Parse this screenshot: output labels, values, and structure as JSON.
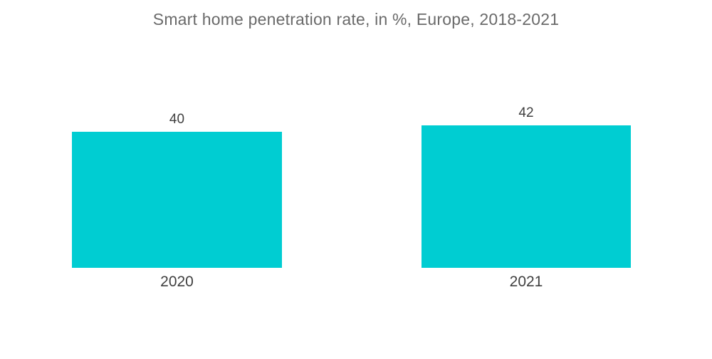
{
  "page": {
    "background_color": "#ffffff"
  },
  "chart_data": {
    "type": "bar",
    "title": "Smart home penetration rate, in %, Europe, 2018-2021",
    "xlabel": "",
    "ylabel": "",
    "categories": [
      "2020",
      "2021"
    ],
    "values": [
      40,
      42
    ],
    "ylim": [
      0,
      42
    ],
    "grid": false,
    "legend": "none",
    "axes_visible": false,
    "bar_color": "#00CDD2",
    "title_color": "#6A6A6A",
    "label_color": "#3F3F3F"
  }
}
